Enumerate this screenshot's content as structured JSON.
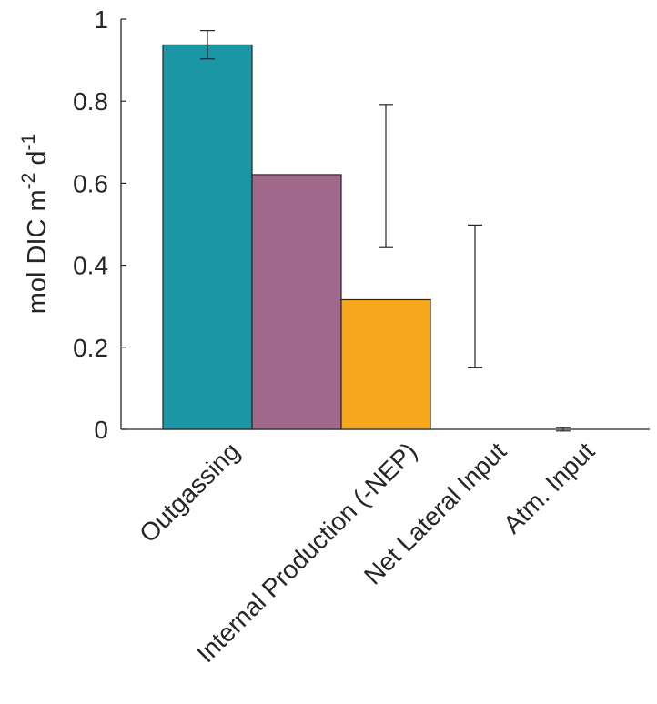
{
  "chart_data": {
    "type": "bar",
    "title": "",
    "xlabel": "",
    "ylabel": {
      "main": "mol DIC m",
      "sup1": "-2",
      "mid": " d",
      "sup2": "-1"
    },
    "ylim": [
      0,
      1
    ],
    "yticks": [
      "0",
      "0.2",
      "0.4",
      "0.6",
      "0.8",
      "1"
    ],
    "grid": false,
    "legend": "none",
    "categories": [
      "Outgassing",
      "Internal Production (-NEP)",
      "Net Lateral Input",
      "Atm. Input"
    ],
    "values": [
      0.937,
      0.621,
      0.316,
      0.0
    ],
    "error_low": [
      0.903,
      0.443,
      0.15,
      -0.004
    ],
    "error_high": [
      0.972,
      0.792,
      0.498,
      0.004
    ],
    "colors": [
      "#1b96a4",
      "#a0698c",
      "#f6a81d",
      "#f6a81d"
    ]
  }
}
